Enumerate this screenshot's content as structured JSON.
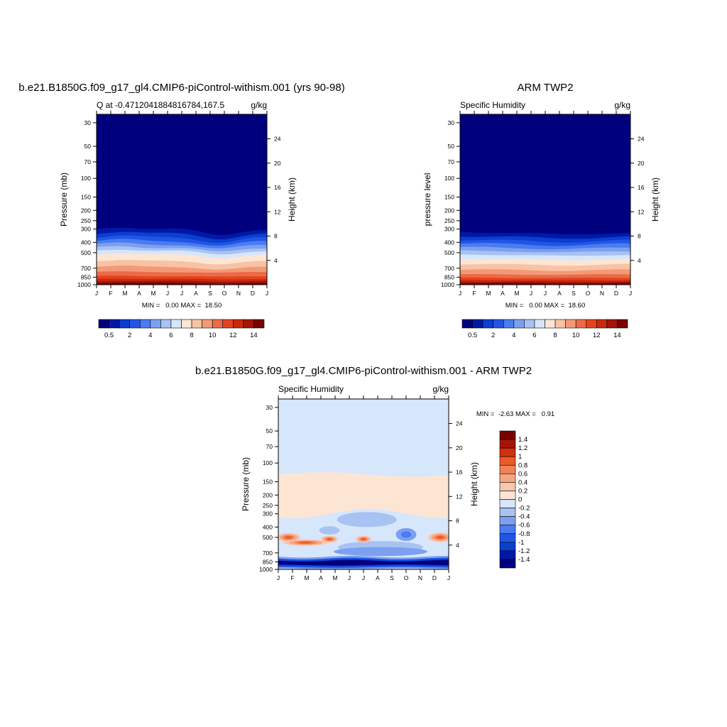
{
  "chart_data": [
    {
      "type": "heatmap",
      "title": "b.e21.B1850G.f09_g17_gl4.CMIP6-piControl-withism.001 (yrs 90-98)",
      "subtitle_left": "Q at -0.4712041884816784,167.5",
      "subtitle_right": "g/kg",
      "ylabel": "Pressure (mb)",
      "ylabel_right": "Height (km)",
      "x_ticks": [
        "J",
        "F",
        "M",
        "A",
        "M",
        "J",
        "J",
        "A",
        "S",
        "O",
        "N",
        "D",
        "J"
      ],
      "y_ticks": [
        "30",
        "50",
        "70",
        "100",
        "150",
        "200",
        "250",
        "300",
        "400",
        "500",
        "700",
        "850",
        "1000"
      ],
      "y_ticks_right": [
        "24",
        "20",
        "16",
        "12",
        "8",
        "4"
      ],
      "ylim": [
        1000,
        25
      ],
      "yscale": "log",
      "minmax_text": "MIN =   0.00 MAX =  18.50",
      "min": 0.0,
      "max": 18.5,
      "colorbar_labels": [
        "0.5",
        "2",
        "4",
        "6",
        "8",
        "10",
        "12",
        "14"
      ],
      "colorbar_levels": [
        0.5,
        1,
        2,
        3,
        4,
        5,
        6,
        7,
        8,
        9,
        10,
        11,
        12,
        13,
        14
      ]
    },
    {
      "type": "heatmap",
      "title": "ARM TWP2",
      "subtitle_left": "Specific Humidity",
      "subtitle_right": "g/kg",
      "ylabel": "pressure level",
      "ylabel_right": "Height (km)",
      "x_ticks": [
        "J",
        "F",
        "M",
        "A",
        "M",
        "J",
        "J",
        "A",
        "S",
        "O",
        "N",
        "D",
        "J"
      ],
      "y_ticks": [
        "30",
        "50",
        "70",
        "100",
        "150",
        "200",
        "250",
        "300",
        "400",
        "500",
        "700",
        "850",
        "1000"
      ],
      "y_ticks_right": [
        "24",
        "20",
        "16",
        "12",
        "8",
        "4"
      ],
      "ylim": [
        1000,
        25
      ],
      "yscale": "log",
      "minmax_text": "MIN =   0.00 MAX =  18.60",
      "min": 0.0,
      "max": 18.6,
      "colorbar_labels": [
        "0.5",
        "2",
        "4",
        "6",
        "8",
        "10",
        "12",
        "14"
      ],
      "colorbar_levels": [
        0.5,
        1,
        2,
        3,
        4,
        5,
        6,
        7,
        8,
        9,
        10,
        11,
        12,
        13,
        14
      ]
    },
    {
      "type": "heatmap",
      "title": "b.e21.B1850G.f09_g17_gl4.CMIP6-piControl-withism.001 - ARM TWP2",
      "subtitle_left": "Specific Humidity",
      "subtitle_right": "g/kg",
      "ylabel": "Pressure (mb)",
      "ylabel_right": "Height (km)",
      "x_ticks": [
        "J",
        "F",
        "M",
        "A",
        "M",
        "J",
        "J",
        "A",
        "S",
        "O",
        "N",
        "D",
        "J"
      ],
      "y_ticks": [
        "30",
        "50",
        "70",
        "100",
        "150",
        "200",
        "250",
        "300",
        "400",
        "500",
        "700",
        "850",
        "1000"
      ],
      "y_ticks_right": [
        "24",
        "20",
        "16",
        "12",
        "8",
        "4"
      ],
      "ylim": [
        1000,
        25
      ],
      "yscale": "log",
      "minmax_text": "MIN =  -2.63 MAX =   0.91",
      "min": -2.63,
      "max": 0.91,
      "colorbar_labels": [
        "1.4",
        "1.2",
        "1",
        "0.8",
        "0.6",
        "0.4",
        "0.2",
        "0",
        "-0.2",
        "-0.4",
        "-0.6",
        "-0.8",
        "-1",
        "-1.2",
        "-1.4"
      ],
      "colorbar_levels": [
        1.4,
        1.2,
        1,
        0.8,
        0.6,
        0.4,
        0.2,
        0,
        -0.2,
        -0.4,
        -0.6,
        -0.8,
        -1,
        -1.2,
        -1.4
      ]
    }
  ],
  "colors": {
    "seq": [
      "#00007f",
      "#0018a8",
      "#0a3fd0",
      "#2255e5",
      "#4a7cf0",
      "#7ca0f0",
      "#a8c2f2",
      "#d6e6fb",
      "#fde5d4",
      "#f9c2a3",
      "#f29a78",
      "#ec6a47",
      "#e4431f",
      "#c92a0d",
      "#a41506",
      "#7a0000"
    ],
    "div": [
      "#7a0000",
      "#a41506",
      "#d1300d",
      "#ec5a2a",
      "#f08258",
      "#f6a583",
      "#fac6ac",
      "#fde5d4",
      "#d6e6fb",
      "#a8c2f2",
      "#7ca0f0",
      "#4a7cf0",
      "#2255e5",
      "#0a3fd0",
      "#0018a8",
      "#00007f"
    ]
  }
}
